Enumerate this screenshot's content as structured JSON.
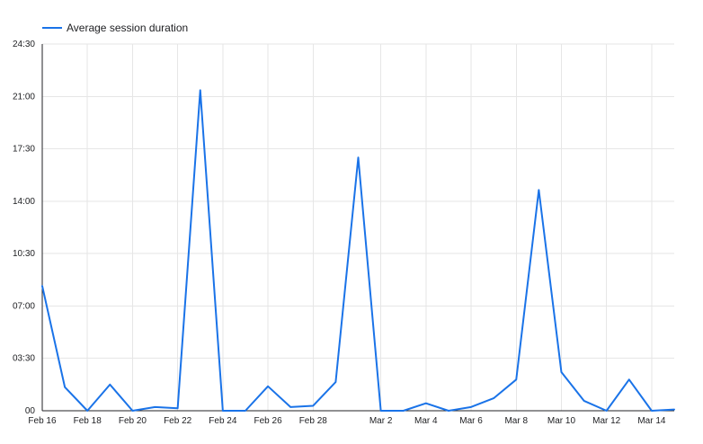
{
  "chart_data": {
    "type": "line",
    "title": "",
    "xlabel": "",
    "ylabel": "",
    "grid": true,
    "legend": {
      "placement": "top-left",
      "entries": [
        "Average session duration"
      ]
    },
    "x": [
      "Feb 16",
      "Feb 17",
      "Feb 18",
      "Feb 19",
      "Feb 20",
      "Feb 21",
      "Feb 22",
      "Feb 23",
      "Feb 24",
      "Feb 25",
      "Feb 26",
      "Feb 27",
      "Feb 28",
      "Feb 29",
      "Mar 1",
      "Mar 2",
      "Mar 3",
      "Mar 4",
      "Mar 5",
      "Mar 6",
      "Mar 7",
      "Mar 8",
      "Mar 9",
      "Mar 10",
      "Mar 11",
      "Mar 12",
      "Mar 13",
      "Mar 14",
      "Mar 15"
    ],
    "x_tick_labels": [
      "Feb 16",
      "Feb 18",
      "Feb 20",
      "Feb 22",
      "Feb 24",
      "Feb 26",
      "Feb 28",
      "Mar 2",
      "Mar 4",
      "Mar 6",
      "Mar 8",
      "Mar 10",
      "Mar 12",
      "Mar 14"
    ],
    "y_tick_labels": [
      "00",
      "03:30",
      "07:00",
      "10:30",
      "14:00",
      "17:30",
      "21:00",
      "24:30"
    ],
    "ylim": [
      "00:00",
      "24:30"
    ],
    "series": [
      {
        "name": "Average session duration",
        "color": "#1a73e8",
        "values": [
          "08:20",
          "01:35",
          "00:00",
          "01:45",
          "00:00",
          "00:15",
          "00:10",
          "21:25",
          "00:00",
          "00:00",
          "01:38",
          "00:15",
          "00:20",
          "01:55",
          "16:55",
          "00:00",
          "00:00",
          "00:30",
          "00:00",
          "00:15",
          "00:50",
          "02:05",
          "14:45",
          "02:35",
          "00:40",
          "00:00",
          "02:05",
          "00:00",
          "00:05"
        ]
      }
    ]
  }
}
